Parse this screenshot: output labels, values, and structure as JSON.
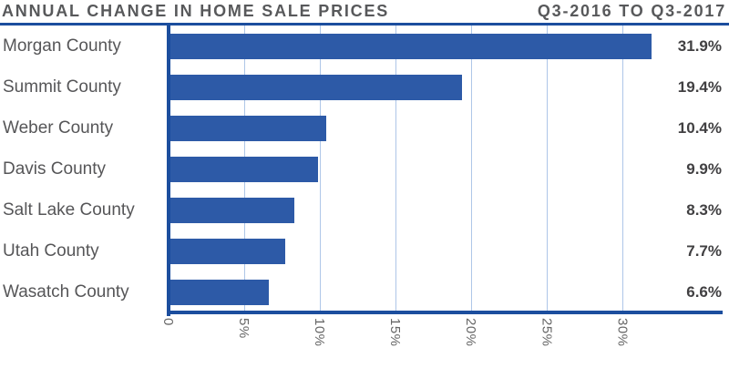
{
  "header": {
    "title": "ANNUAL CHANGE IN HOME SALE PRICES",
    "period": "Q3-2016 TO Q3-2017"
  },
  "chart_data": {
    "type": "bar",
    "orientation": "horizontal",
    "title": "ANNUAL CHANGE IN HOME SALE PRICES",
    "subtitle": "Q3-2016 TO Q3-2017",
    "categories": [
      "Morgan County",
      "Summit County",
      "Weber County",
      "Davis County",
      "Salt Lake County",
      "Utah County",
      "Wasatch County"
    ],
    "values": [
      31.9,
      19.4,
      10.4,
      9.9,
      8.3,
      7.7,
      6.6
    ],
    "value_labels": [
      "31.9%",
      "19.4%",
      "10.4%",
      "9.9%",
      "8.3%",
      "7.7%",
      "6.6%"
    ],
    "xlabel": "",
    "ylabel": "",
    "xlim": [
      0,
      36.6
    ],
    "x_ticks": [
      0,
      5,
      10,
      15,
      20,
      25,
      30
    ],
    "x_tick_labels": [
      "0",
      "5%",
      "10%",
      "15%",
      "20%",
      "25%",
      "30%"
    ],
    "x_tick_label_rotation_deg": 90,
    "grid": true,
    "legend": false,
    "colors": {
      "bar": "#2d5aa7",
      "axis": "#1c4e9e",
      "gridline": "#aec6e8",
      "header_text": "#58595b",
      "category_text": "#565658",
      "value_text": "#414042",
      "tick_text": "#666666"
    }
  }
}
